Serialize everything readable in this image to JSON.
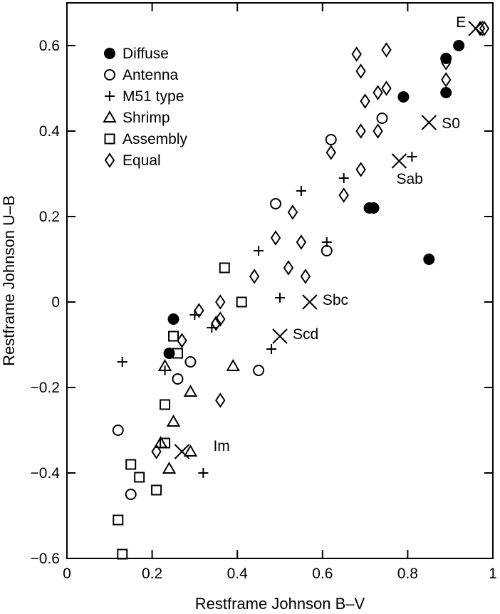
{
  "chart_data": {
    "type": "scatter",
    "xlabel": "Restframe Johnson B–V",
    "ylabel": "Restframe Johnson U–B",
    "xlim": [
      0,
      1
    ],
    "ylim": [
      -0.6,
      0.7
    ],
    "x_ticks": [
      0,
      0.2,
      0.4,
      0.6,
      0.8,
      1
    ],
    "x_tick_labels": [
      "0",
      "0.2",
      "0.4",
      "0.6",
      "0.8",
      "1"
    ],
    "y_ticks": [
      -0.6,
      -0.4,
      -0.2,
      0,
      0.2,
      0.4,
      0.6
    ],
    "y_tick_labels": [
      "−0.6",
      "−0.4",
      "−0.2",
      "0",
      "0.2",
      "0.4",
      "0.6"
    ],
    "grid": false,
    "legend_position": "top-left",
    "series": [
      {
        "name": "Diffuse",
        "marker": "filled-circle",
        "points": [
          [
            0.25,
            -0.04
          ],
          [
            0.24,
            -0.12
          ],
          [
            0.71,
            0.22
          ],
          [
            0.72,
            0.22
          ],
          [
            0.79,
            0.48
          ],
          [
            0.85,
            0.1
          ],
          [
            0.89,
            0.57
          ],
          [
            0.89,
            0.49
          ],
          [
            0.92,
            0.6
          ]
        ]
      },
      {
        "name": "Antenna",
        "marker": "open-circle",
        "points": [
          [
            0.12,
            -0.3
          ],
          [
            0.15,
            -0.45
          ],
          [
            0.26,
            -0.18
          ],
          [
            0.29,
            -0.14
          ],
          [
            0.45,
            -0.16
          ],
          [
            0.49,
            0.23
          ],
          [
            0.61,
            0.12
          ],
          [
            0.62,
            0.38
          ],
          [
            0.74,
            0.43
          ]
        ]
      },
      {
        "name": "M51 type",
        "marker": "plus",
        "points": [
          [
            0.13,
            -0.14
          ],
          [
            0.23,
            -0.16
          ],
          [
            0.3,
            -0.03
          ],
          [
            0.34,
            -0.06
          ],
          [
            0.32,
            -0.4
          ],
          [
            0.45,
            0.12
          ],
          [
            0.5,
            0.01
          ],
          [
            0.48,
            -0.11
          ],
          [
            0.55,
            0.26
          ],
          [
            0.61,
            0.14
          ],
          [
            0.65,
            0.29
          ],
          [
            0.81,
            0.34
          ]
        ]
      },
      {
        "name": "Shrimp",
        "marker": "open-triangle",
        "points": [
          [
            0.23,
            -0.15
          ],
          [
            0.22,
            -0.33
          ],
          [
            0.24,
            -0.39
          ],
          [
            0.25,
            -0.28
          ],
          [
            0.29,
            -0.21
          ],
          [
            0.29,
            -0.35
          ],
          [
            0.39,
            -0.15
          ]
        ]
      },
      {
        "name": "Assembly",
        "marker": "open-square",
        "points": [
          [
            0.12,
            -0.51
          ],
          [
            0.13,
            -0.59
          ],
          [
            0.15,
            -0.38
          ],
          [
            0.17,
            -0.41
          ],
          [
            0.21,
            -0.44
          ],
          [
            0.23,
            -0.24
          ],
          [
            0.23,
            -0.33
          ],
          [
            0.25,
            -0.08
          ],
          [
            0.26,
            -0.12
          ],
          [
            0.37,
            0.08
          ],
          [
            0.41,
            0.0
          ]
        ]
      },
      {
        "name": "Equal",
        "marker": "open-diamond",
        "points": [
          [
            0.21,
            -0.35
          ],
          [
            0.27,
            -0.09
          ],
          [
            0.31,
            -0.02
          ],
          [
            0.35,
            -0.05
          ],
          [
            0.36,
            -0.04
          ],
          [
            0.36,
            0.0
          ],
          [
            0.36,
            -0.23
          ],
          [
            0.44,
            0.06
          ],
          [
            0.49,
            0.15
          ],
          [
            0.52,
            0.08
          ],
          [
            0.53,
            0.21
          ],
          [
            0.55,
            0.14
          ],
          [
            0.56,
            0.06
          ],
          [
            0.62,
            0.35
          ],
          [
            0.65,
            0.25
          ],
          [
            0.68,
            0.58
          ],
          [
            0.69,
            0.54
          ],
          [
            0.69,
            0.4
          ],
          [
            0.69,
            0.31
          ],
          [
            0.7,
            0.47
          ],
          [
            0.73,
            0.4
          ],
          [
            0.73,
            0.49
          ],
          [
            0.75,
            0.5
          ],
          [
            0.75,
            0.59
          ],
          [
            0.89,
            0.52
          ],
          [
            0.89,
            0.56
          ],
          [
            0.97,
            0.64
          ],
          [
            0.98,
            0.64
          ]
        ]
      }
    ],
    "reference_points": [
      {
        "label": "E",
        "x": 0.96,
        "y": 0.64
      },
      {
        "label": "S0",
        "x": 0.85,
        "y": 0.42
      },
      {
        "label": "Sab",
        "x": 0.78,
        "y": 0.33
      },
      {
        "label": "Sbc",
        "x": 0.57,
        "y": 0.0
      },
      {
        "label": "Scd",
        "x": 0.5,
        "y": -0.08
      },
      {
        "label": "Im",
        "x": 0.27,
        "y": -0.35
      }
    ]
  }
}
